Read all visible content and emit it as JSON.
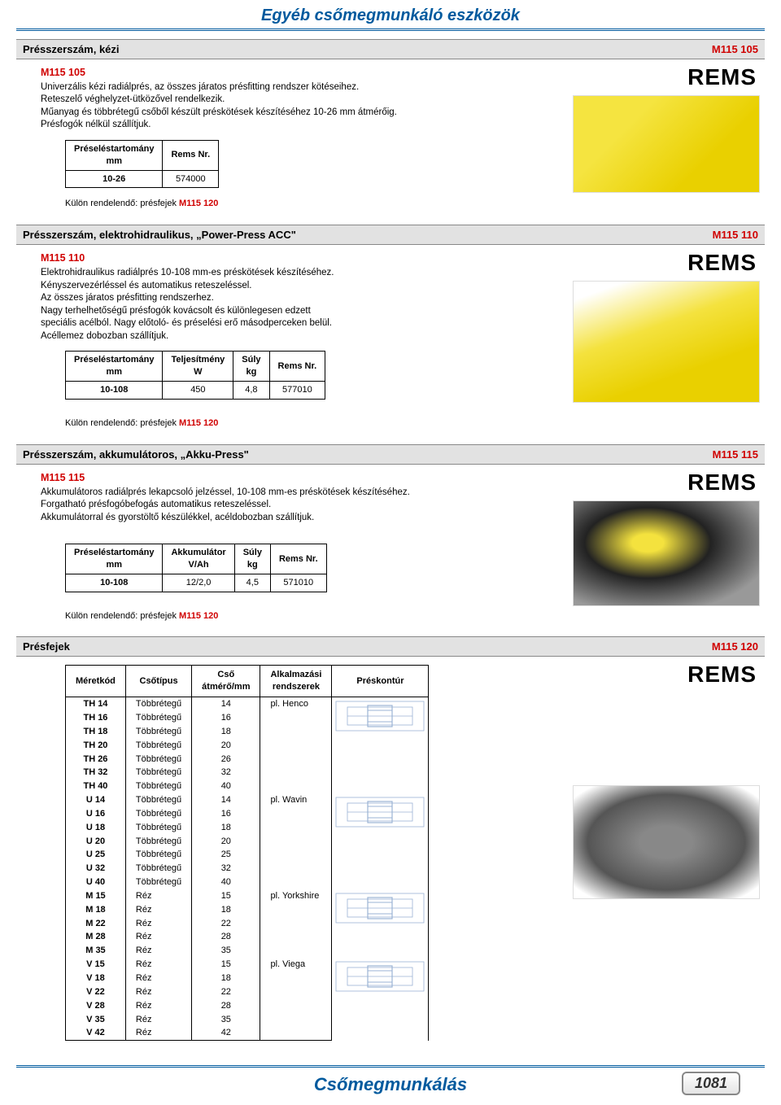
{
  "page_title": "Egyéb csőmegmunkáló eszközök",
  "footer_title": "Csőmegmunkálás",
  "page_number": "1081",
  "brand_label": "REMS",
  "sections": {
    "s1": {
      "header": "Présszerszám, kézi",
      "code": "M115 105",
      "code2": "M115 105",
      "desc_lines": [
        "Univerzális kézi radiálprés, az összes járatos présfitting rendszer kötéseihez.",
        "Reteszelő véghelyzet-ütközővel rendelkezik.",
        "Műanyag és többrétegű csőből készült préskötések készítéséhez 10-26 mm átmérőig.",
        "Présfogók nélkül szállítjuk."
      ],
      "table": {
        "headers": [
          "Préseléstartomány\nmm",
          "Rems Nr."
        ],
        "rows": [
          [
            "10-26",
            "574000"
          ]
        ]
      },
      "note_prefix": "Külön rendelendő: présfejek ",
      "note_ref": "M115 120"
    },
    "s2": {
      "header": "Présszerszám, elektrohidraulikus, „Power-Press ACC\"",
      "code": "M115 110",
      "code2": "M115 110",
      "desc_lines": [
        "Elektrohidraulikus radiálprés 10-108 mm-es préskötések készítéséhez.",
        "Kényszervezérléssel és automatikus reteszeléssel.",
        "Az összes járatos présfitting rendszerhez.",
        "Nagy terhelhetőségű présfogók kovácsolt és különlegesen edzett",
        "speciális acélból. Nagy előtoló- és préselési erő másodperceken belül.",
        "Acéllemez dobozban szállítjuk."
      ],
      "table": {
        "headers": [
          "Préseléstartomány\nmm",
          "Teljesítmény\nW",
          "Súly\nkg",
          "Rems Nr."
        ],
        "rows": [
          [
            "10-108",
            "450",
            "4,8",
            "577010"
          ]
        ]
      },
      "note_prefix": "Külön rendelendő: présfejek ",
      "note_ref": "M115 120"
    },
    "s3": {
      "header": "Présszerszám, akkumulátoros, „Akku-Press\"",
      "code": "M115 115",
      "code2": "M115 115",
      "desc_lines": [
        "Akkumulátoros radiálprés lekapcsoló jelzéssel, 10-108 mm-es préskötések készítéséhez.",
        "Forgatható présfogóbefogás automatikus reteszeléssel.",
        "Akkumulátorral és gyorstöltő készülékkel, acéldobozban szállítjuk."
      ],
      "table": {
        "headers": [
          "Préseléstartomány\nmm",
          "Akkumulátor\nV/Ah",
          "Súly\nkg",
          "Rems Nr."
        ],
        "rows": [
          [
            "10-108",
            "12/2,0",
            "4,5",
            "571010"
          ]
        ]
      },
      "note_prefix": "Külön rendelendő: présfejek ",
      "note_ref": "M115 120"
    },
    "s4": {
      "header": "Présfejek",
      "code": "M115 120",
      "table": {
        "headers": [
          "Méretkód",
          "Csőtípus",
          "Cső\nátmérő/mm",
          "Alkalmazási\nrendszerek",
          "Préskontúr"
        ],
        "rows": [
          [
            "TH 14",
            "Többrétegű",
            "14",
            "pl. Henco",
            "k"
          ],
          [
            "TH 16",
            "Többrétegű",
            "16",
            "",
            ""
          ],
          [
            "TH 18",
            "Többrétegű",
            "18",
            "",
            ""
          ],
          [
            "TH 20",
            "Többrétegű",
            "20",
            "",
            ""
          ],
          [
            "TH 26",
            "Többrétegű",
            "26",
            "",
            ""
          ],
          [
            "TH 32",
            "Többrétegű",
            "32",
            "",
            ""
          ],
          [
            "TH 40",
            "Többrétegű",
            "40",
            "",
            ""
          ],
          [
            "U 14",
            "Többrétegű",
            "14",
            "pl. Wavin",
            "k"
          ],
          [
            "U 16",
            "Többrétegű",
            "16",
            "",
            ""
          ],
          [
            "U 18",
            "Többrétegű",
            "18",
            "",
            ""
          ],
          [
            "U 20",
            "Többrétegű",
            "20",
            "",
            ""
          ],
          [
            "U 25",
            "Többrétegű",
            "25",
            "",
            ""
          ],
          [
            "U 32",
            "Többrétegű",
            "32",
            "",
            ""
          ],
          [
            "U 40",
            "Többrétegű",
            "40",
            "",
            ""
          ],
          [
            "M 15",
            "Réz",
            "15",
            "pl. Yorkshire",
            "k"
          ],
          [
            "M 18",
            "Réz",
            "18",
            "",
            ""
          ],
          [
            "M 22",
            "Réz",
            "22",
            "",
            ""
          ],
          [
            "M 28",
            "Réz",
            "28",
            "",
            ""
          ],
          [
            "M 35",
            "Réz",
            "35",
            "",
            ""
          ],
          [
            "V 15",
            "Réz",
            "15",
            "pl. Viega",
            "k"
          ],
          [
            "V 18",
            "Réz",
            "18",
            "",
            ""
          ],
          [
            "V 22",
            "Réz",
            "22",
            "",
            ""
          ],
          [
            "V 28",
            "Réz",
            "28",
            "",
            ""
          ],
          [
            "V 35",
            "Réz",
            "35",
            "",
            ""
          ],
          [
            "V 42",
            "Réz",
            "42",
            "",
            ""
          ]
        ]
      }
    }
  }
}
